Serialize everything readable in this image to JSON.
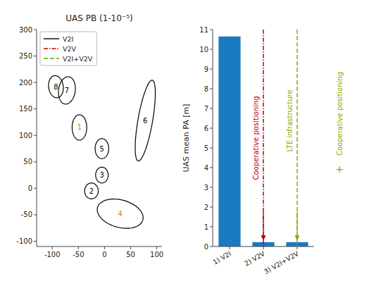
{
  "chart_data": [
    {
      "type": "ellipse",
      "title": "UAS PB (1-10⁻⁵)",
      "xlim": [
        -130,
        110
      ],
      "ylim": [
        -110,
        300
      ],
      "xticks": [
        -100,
        -50,
        0,
        50,
        100
      ],
      "yticks": [
        -100,
        -50,
        0,
        50,
        100,
        150,
        200,
        250,
        300
      ],
      "ellipses": [
        {
          "label": "7",
          "cx": -72,
          "cy": 185,
          "w": 32,
          "h": 52,
          "angle": -8,
          "color": "black"
        },
        {
          "label": "8",
          "cx": -93,
          "cy": 192,
          "w": 28,
          "h": 42,
          "angle": 8,
          "color": "black"
        },
        {
          "label": "1",
          "cx": -48,
          "cy": 115,
          "w": 28,
          "h": 48,
          "angle": 0,
          "color": "#cc8800"
        },
        {
          "label": "5",
          "cx": -5,
          "cy": 75,
          "w": 26,
          "h": 38,
          "angle": 0,
          "color": "black"
        },
        {
          "label": "3",
          "cx": -5,
          "cy": 25,
          "w": 24,
          "h": 30,
          "angle": 0,
          "color": "black"
        },
        {
          "label": "2",
          "cx": -25,
          "cy": -5,
          "w": 26,
          "h": 30,
          "angle": 0,
          "color": "black"
        },
        {
          "label": "4",
          "cx": 30,
          "cy": -48,
          "w": 90,
          "h": 52,
          "angle": -15,
          "color": "#cc8800"
        },
        {
          "label": "6",
          "cx": 78,
          "cy": 128,
          "w": 28,
          "h": 155,
          "angle": -10,
          "color": "black"
        }
      ],
      "series": [
        {
          "name": "V2I",
          "color": "black",
          "line_style": "solid"
        },
        {
          "name": "V2V",
          "color": "#cc0000",
          "line_style": "dashdot"
        },
        {
          "name": "V2I+V2V",
          "color": "#66aa00",
          "line_style": "dashed"
        }
      ],
      "legend": "upper left",
      "grid": false
    },
    {
      "type": "bar",
      "categories": [
        "1) V2I",
        "2) V2V",
        "3) V2I+V2V"
      ],
      "values": [
        10.65,
        0.22,
        0.22
      ],
      "color": "#1a7abf",
      "ylabel": "UAS mean PA [m]",
      "ylim": [
        0,
        11
      ],
      "yticks": [
        0,
        1,
        2,
        3,
        4,
        5,
        6,
        7,
        8,
        9,
        10,
        11
      ],
      "grid": false,
      "annotations": [
        {
          "text": "Cooperative positioning",
          "color": "#bb0000",
          "category": "2) V2V",
          "line_style": "dashdot"
        },
        {
          "text": "LTE infrastructure",
          "color": "#88aa00",
          "category": "3) V2I+V2V",
          "line_style": "dashed"
        },
        {
          "text": "Cooperative positioning",
          "color": "#88aa00"
        },
        {
          "text": "+",
          "color": "#88aa00"
        }
      ]
    }
  ]
}
